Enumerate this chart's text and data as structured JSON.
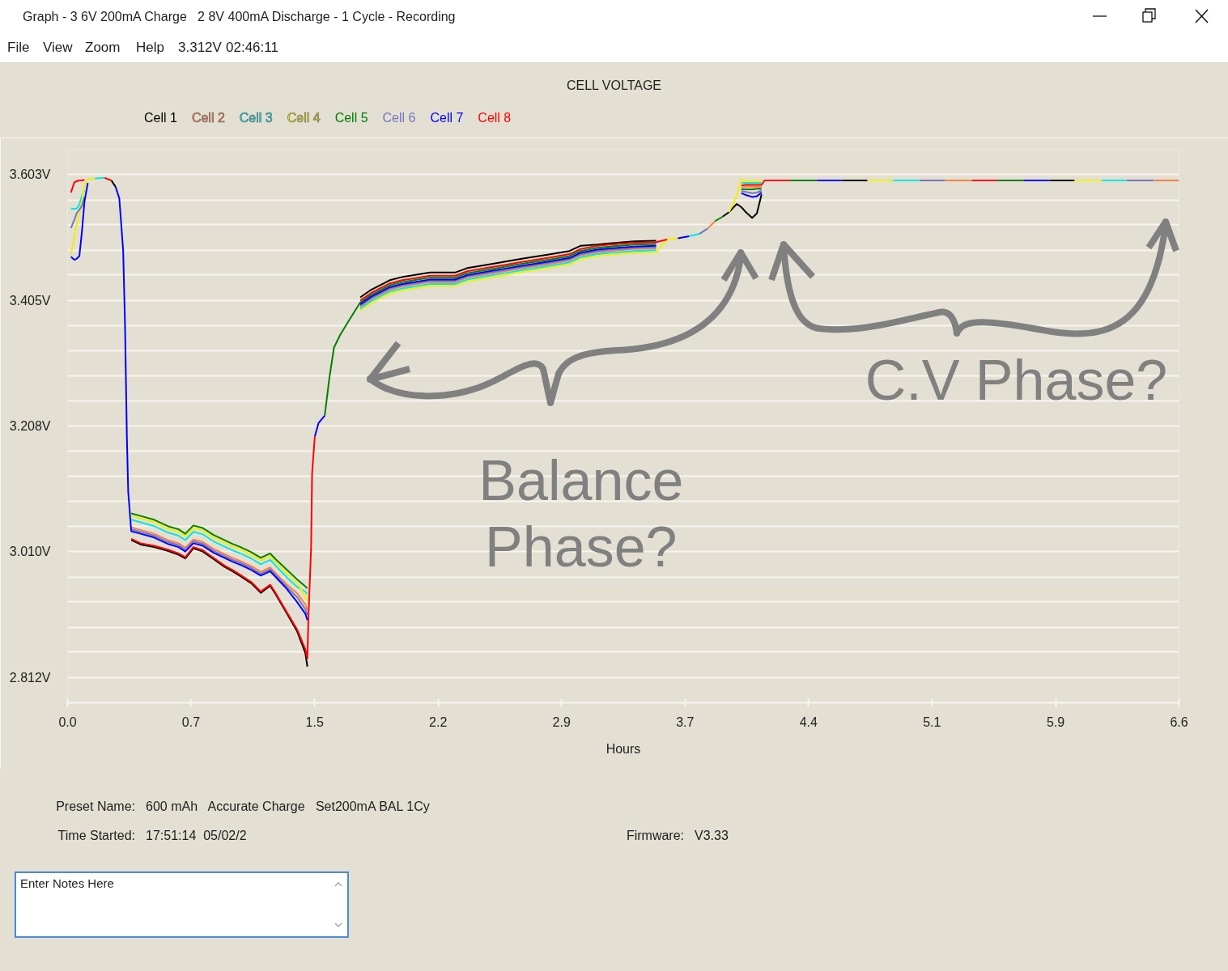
{
  "chart_data": {
    "type": "line",
    "title": "CELL VOLTAGE",
    "xlabel": "Hours",
    "annotations": [
      "Graph - 3 6V 200mA Charge   2 8V 400mA Discharge - 1 Cycle - Recording",
      "File",
      "View",
      "Zoom",
      "Help",
      "3.312V",
      "02:46:11",
      "Balance Phase?",
      "C.V Phase?",
      "Preset Name:",
      "600 mAh   Accurate Charge   Set200mA BAL 1Cy",
      "Time Started:",
      "17:51:14  05/02/2",
      "Firmware:",
      "V3.33",
      "Enter Notes Here"
    ],
    "xlim": [
      0,
      6.6
    ],
    "ylim": [
      2.772,
      3.643
    ],
    "xticks": [
      {
        "value": 0,
        "label": "0.0"
      },
      {
        "value": 0.733,
        "label": "0.7"
      },
      {
        "value": 1.467,
        "label": "1.5"
      },
      {
        "value": 2.2,
        "label": "2.2"
      },
      {
        "value": 2.933,
        "label": "2.9"
      },
      {
        "value": 3.667,
        "label": "3.7"
      },
      {
        "value": 4.4,
        "label": "4.4"
      },
      {
        "value": 5.133,
        "label": "5.1"
      },
      {
        "value": 5.867,
        "label": "5.9"
      },
      {
        "value": 6.6,
        "label": "6.6"
      }
    ],
    "yticks": [
      {
        "value": 2.812,
        "label": "2.812V"
      },
      {
        "value": 2.852,
        "label": null
      },
      {
        "value": 2.891,
        "label": null
      },
      {
        "value": 2.931,
        "label": null
      },
      {
        "value": 2.97,
        "label": null
      },
      {
        "value": 3.01,
        "label": "3.010V"
      },
      {
        "value": 3.05,
        "label": null
      },
      {
        "value": 3.089,
        "label": null
      },
      {
        "value": 3.129,
        "label": null
      },
      {
        "value": 3.168,
        "label": null
      },
      {
        "value": 3.208,
        "label": "3.208V"
      },
      {
        "value": 3.247,
        "label": null
      },
      {
        "value": 3.287,
        "label": null
      },
      {
        "value": 3.326,
        "label": null
      },
      {
        "value": 3.366,
        "label": null
      },
      {
        "value": 3.405,
        "label": "3.405V"
      },
      {
        "value": 3.445,
        "label": null
      },
      {
        "value": 3.484,
        "label": null
      },
      {
        "value": 3.524,
        "label": null
      },
      {
        "value": 3.563,
        "label": null
      },
      {
        "value": 3.603,
        "label": "3.603V"
      },
      {
        "value": 3.643,
        "label": null
      }
    ],
    "grid": "y",
    "legend": "top left",
    "line_style": "solid",
    "x": [
      0.02,
      0.04,
      0.055,
      0.07,
      0.085,
      0.1,
      0.12,
      0.16,
      0.22,
      0.26,
      0.285,
      0.307,
      0.33,
      0.341,
      0.352,
      0.36,
      0.378,
      0.434,
      0.514,
      0.595,
      0.659,
      0.699,
      0.747,
      0.803,
      0.867,
      0.931,
      0.979,
      1.027,
      1.091,
      1.147,
      1.203,
      1.235,
      1.299,
      1.364,
      1.412,
      1.424,
      1.43,
      1.446,
      1.452,
      1.468,
      1.49,
      1.527,
      1.555,
      1.582,
      1.619,
      1.674,
      1.738,
      1.803,
      1.913,
      1.987,
      2.152,
      2.3,
      2.373,
      2.483,
      2.594,
      2.704,
      2.851,
      2.98,
      3.045,
      3.146,
      3.219,
      3.366,
      3.495,
      3.56,
      3.624,
      3.69,
      3.753,
      3.8,
      3.845,
      3.89,
      3.927,
      3.974,
      4.001,
      4.028,
      4.065,
      4.093,
      4.121,
      4.139,
      4.29,
      4.45,
      4.6,
      4.75,
      4.9,
      5.06,
      5.21,
      5.37,
      5.52,
      5.68,
      5.83,
      5.98,
      6.14,
      6.29,
      6.45,
      6.6
    ],
    "series": [
      {
        "name": "Cell 1",
        "color": "#000000",
        "values": [
          null,
          null,
          null,
          null,
          null,
          null,
          null,
          null,
          null,
          3.594,
          3.584,
          null,
          null,
          null,
          null,
          null,
          3.028,
          3.021,
          3.017,
          3.011,
          3.005,
          2.999,
          3.015,
          3.01,
          2.998,
          2.986,
          2.979,
          2.971,
          2.96,
          2.945,
          2.956,
          2.943,
          2.914,
          2.884,
          2.85,
          2.829,
          null,
          null,
          null,
          null,
          null,
          null,
          null,
          null,
          null,
          null,
          3.41,
          3.422,
          3.437,
          3.442,
          3.449,
          3.449,
          3.456,
          3.461,
          3.466,
          3.471,
          3.477,
          3.483,
          3.491,
          3.493,
          3.495,
          3.498,
          3.499,
          null,
          null,
          null,
          null,
          null,
          null,
          3.537,
          3.544,
          3.557,
          3.552,
          3.544,
          3.535,
          3.542,
          3.572,
          null,
          null,
          null,
          3.594,
          3.594,
          null,
          null,
          null,
          null,
          null,
          null,
          3.594,
          3.594,
          null,
          null,
          null,
          null
        ]
      },
      {
        "name": "Cell 2",
        "color": "#ff8040",
        "values": [
          null,
          null,
          null,
          null,
          null,
          null,
          null,
          null,
          null,
          null,
          null,
          null,
          null,
          null,
          null,
          null,
          3.048,
          3.044,
          3.038,
          3.028,
          3.023,
          3.016,
          3.029,
          3.025,
          3.014,
          3.006,
          3.0,
          2.995,
          2.987,
          2.978,
          2.985,
          2.976,
          2.959,
          2.944,
          2.927,
          2.918,
          null,
          null,
          null,
          null,
          null,
          null,
          null,
          null,
          null,
          null,
          3.395,
          3.407,
          3.422,
          3.427,
          3.434,
          3.434,
          3.441,
          3.446,
          3.451,
          3.456,
          3.462,
          3.468,
          3.476,
          3.481,
          3.483,
          3.486,
          3.487,
          null,
          null,
          null,
          null,
          3.518,
          3.53,
          null,
          null,
          null,
          3.583,
          3.584,
          3.584,
          3.584,
          3.584,
          null,
          null,
          null,
          null,
          null,
          null,
          null,
          3.594,
          3.594,
          null,
          null,
          null,
          null,
          null,
          null,
          3.594,
          3.594
        ]
      },
      {
        "name": "Cell 3",
        "color": "#00e8e8",
        "values": [
          3.55,
          3.549,
          3.55,
          3.556,
          3.57,
          3.578,
          null,
          3.597,
          3.598,
          null,
          null,
          null,
          null,
          null,
          null,
          null,
          3.06,
          3.056,
          3.05,
          3.04,
          3.035,
          3.028,
          3.041,
          3.037,
          3.026,
          3.018,
          3.012,
          3.007,
          2.999,
          2.99,
          2.997,
          2.988,
          2.97,
          2.954,
          2.947,
          2.943,
          null,
          null,
          null,
          null,
          null,
          null,
          null,
          null,
          null,
          null,
          3.392,
          3.404,
          3.419,
          3.424,
          3.431,
          3.431,
          3.438,
          3.443,
          3.448,
          3.453,
          3.459,
          3.465,
          3.473,
          3.478,
          3.48,
          3.483,
          3.484,
          null,
          null,
          3.506,
          3.51,
          null,
          null,
          null,
          null,
          null,
          3.59,
          3.59,
          3.59,
          3.59,
          3.59,
          null,
          null,
          null,
          null,
          null,
          3.594,
          3.594,
          null,
          null,
          null,
          null,
          null,
          null,
          3.594,
          3.594,
          null,
          null
        ]
      },
      {
        "name": "Cell 4",
        "color": "#f0f000",
        "values": [
          3.478,
          3.505,
          3.525,
          3.54,
          3.562,
          3.587,
          3.596,
          3.597,
          null,
          null,
          null,
          null,
          null,
          null,
          null,
          null,
          3.066,
          3.062,
          3.056,
          3.046,
          3.041,
          3.034,
          3.047,
          3.043,
          3.032,
          3.024,
          3.018,
          3.013,
          3.005,
          2.996,
          3.003,
          2.994,
          2.976,
          2.96,
          2.94,
          2.932,
          null,
          null,
          null,
          null,
          null,
          null,
          null,
          null,
          null,
          null,
          3.389,
          3.401,
          3.416,
          3.421,
          3.428,
          3.428,
          3.435,
          3.44,
          3.445,
          3.45,
          3.456,
          3.462,
          3.47,
          3.475,
          3.477,
          3.48,
          3.481,
          3.501,
          3.503,
          null,
          null,
          null,
          null,
          null,
          3.544,
          3.57,
          3.596,
          3.593,
          3.593,
          3.593,
          3.593,
          null,
          null,
          null,
          null,
          3.594,
          3.594,
          null,
          null,
          null,
          null,
          null,
          null,
          3.594,
          3.594,
          null,
          null,
          null
        ]
      },
      {
        "name": "Cell 5",
        "color": "#008000",
        "values": [
          null,
          null,
          null,
          null,
          null,
          null,
          null,
          null,
          null,
          null,
          null,
          null,
          null,
          null,
          null,
          null,
          3.07,
          3.066,
          3.06,
          3.05,
          3.045,
          3.038,
          3.051,
          3.047,
          3.036,
          3.028,
          3.022,
          3.017,
          3.009,
          3.0,
          3.007,
          2.998,
          2.982,
          2.966,
          2.955,
          2.952,
          null,
          null,
          null,
          null,
          null,
          3.224,
          3.284,
          3.331,
          3.351,
          3.375,
          3.402,
          3.414,
          3.429,
          3.434,
          3.441,
          3.441,
          3.448,
          3.453,
          3.458,
          3.463,
          3.469,
          3.475,
          3.483,
          3.488,
          3.49,
          3.493,
          3.494,
          null,
          null,
          null,
          null,
          null,
          3.53,
          3.537,
          null,
          null,
          3.58,
          3.58,
          3.58,
          3.581,
          3.581,
          null,
          3.594,
          3.594,
          null,
          null,
          null,
          null,
          null,
          null,
          3.594,
          3.594,
          null,
          null,
          null,
          null,
          null,
          null
        ]
      },
      {
        "name": "Cell 6",
        "color": "#7474c4",
        "values": [
          3.519,
          3.532,
          3.543,
          3.548,
          3.554,
          3.568,
          null,
          null,
          null,
          null,
          null,
          null,
          null,
          null,
          null,
          null,
          3.045,
          3.041,
          3.035,
          3.025,
          3.02,
          3.013,
          3.026,
          3.022,
          3.011,
          3.003,
          2.997,
          2.992,
          2.984,
          2.975,
          2.982,
          2.973,
          2.955,
          2.938,
          2.919,
          2.91,
          null,
          null,
          null,
          null,
          null,
          null,
          null,
          null,
          null,
          null,
          3.397,
          3.409,
          3.424,
          3.429,
          3.436,
          3.436,
          3.443,
          3.448,
          3.453,
          3.458,
          3.464,
          3.47,
          3.478,
          3.483,
          3.485,
          3.488,
          3.489,
          null,
          null,
          null,
          3.51,
          3.518,
          null,
          null,
          null,
          null,
          3.577,
          3.576,
          3.574,
          3.575,
          3.578,
          null,
          null,
          null,
          null,
          null,
          null,
          3.594,
          3.594,
          null,
          null,
          null,
          null,
          null,
          null,
          3.594,
          3.594,
          null
        ]
      },
      {
        "name": "Cell 7",
        "color": "#0000ff",
        "values": [
          3.474,
          3.469,
          3.471,
          3.475,
          3.513,
          3.56,
          3.59,
          null,
          null,
          null,
          3.584,
          3.566,
          3.484,
          3.367,
          3.191,
          3.104,
          3.042,
          3.038,
          3.032,
          3.022,
          3.017,
          3.01,
          3.023,
          3.019,
          3.008,
          3.0,
          2.994,
          2.989,
          2.981,
          2.972,
          2.979,
          2.97,
          2.952,
          2.93,
          2.912,
          2.902,
          null,
          null,
          null,
          3.191,
          3.212,
          3.224,
          null,
          null,
          null,
          null,
          3.399,
          3.411,
          3.426,
          3.431,
          3.438,
          3.438,
          3.445,
          3.45,
          3.455,
          3.46,
          3.466,
          3.472,
          3.48,
          3.485,
          3.487,
          3.49,
          3.491,
          null,
          3.503,
          3.506,
          null,
          null,
          null,
          null,
          null,
          null,
          3.574,
          3.571,
          3.568,
          3.569,
          3.575,
          null,
          null,
          3.594,
          3.594,
          null,
          null,
          null,
          null,
          null,
          null,
          3.594,
          3.594,
          null,
          null,
          null,
          null,
          null
        ]
      },
      {
        "name": "Cell 8",
        "color": "#ff0000",
        "values": [
          3.575,
          3.591,
          3.593,
          3.594,
          3.594,
          3.595,
          null,
          null,
          3.598,
          3.594,
          null,
          null,
          null,
          null,
          null,
          null,
          3.03,
          3.023,
          3.019,
          3.013,
          3.007,
          3.001,
          3.017,
          3.012,
          3.0,
          2.988,
          2.981,
          2.973,
          2.962,
          2.947,
          2.958,
          2.945,
          2.916,
          2.887,
          2.856,
          2.842,
          2.905,
          3.016,
          3.133,
          3.191,
          null,
          null,
          null,
          null,
          null,
          null,
          3.405,
          3.417,
          3.432,
          3.437,
          3.444,
          3.444,
          3.451,
          3.456,
          3.461,
          3.466,
          3.472,
          3.478,
          3.486,
          3.491,
          3.493,
          3.496,
          3.497,
          3.501,
          null,
          null,
          null,
          null,
          null,
          null,
          null,
          null,
          3.586,
          3.587,
          3.587,
          3.587,
          3.587,
          3.594,
          3.594,
          null,
          null,
          null,
          null,
          null,
          null,
          3.594,
          3.594,
          null,
          null,
          null,
          null,
          null,
          null,
          null
        ]
      }
    ]
  }
}
